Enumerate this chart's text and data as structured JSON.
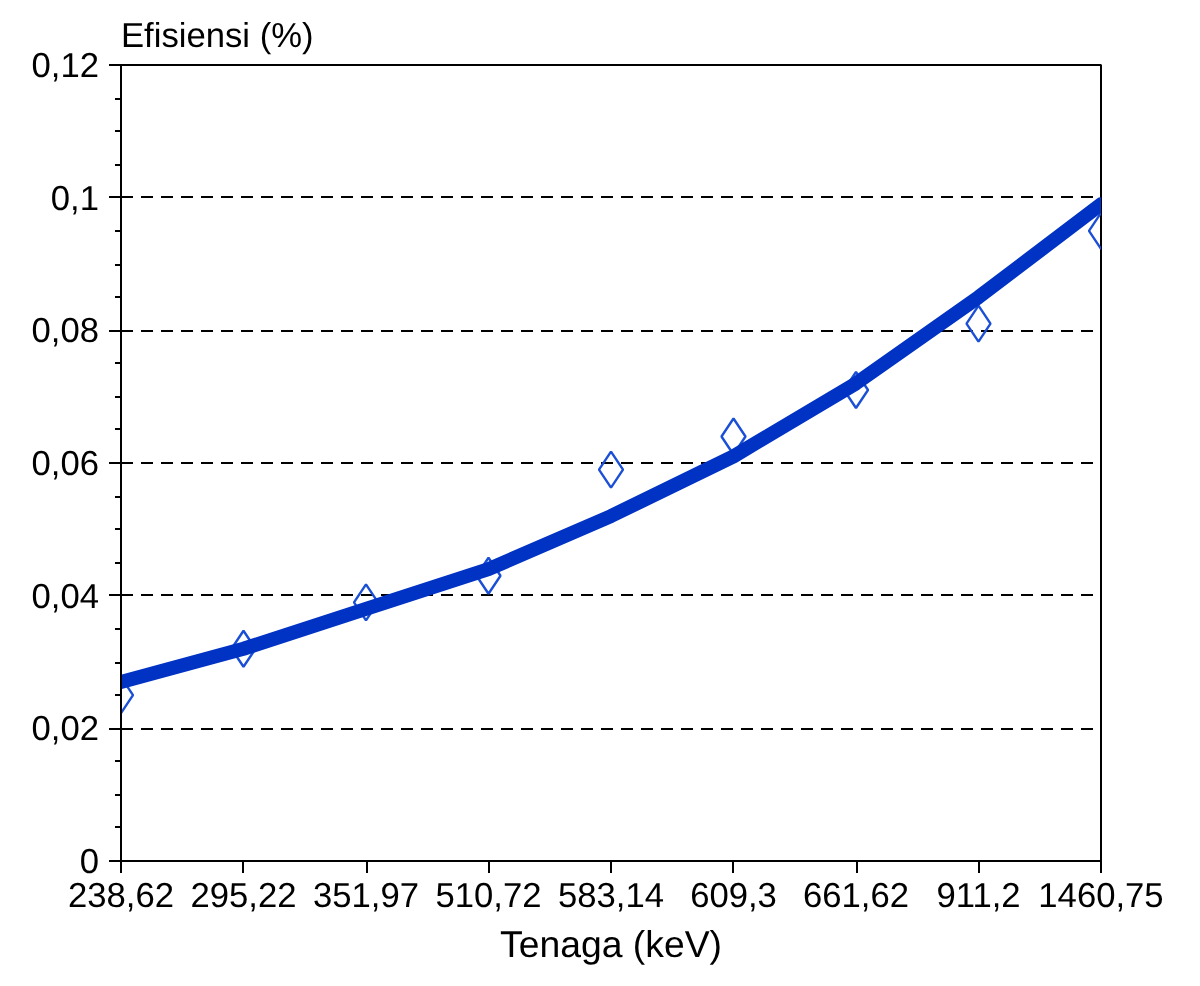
{
  "chart_data": {
    "type": "scatter",
    "xlabel": "Tenaga (keV)",
    "ylabel": "Efisiensi (%)",
    "categories": [
      "238,62",
      "295,22",
      "351,97",
      "510,72",
      "583,14",
      "609,3",
      "661,62",
      "911,2",
      "1460,75"
    ],
    "series": [
      {
        "color": "#1a4fd6",
        "marker": "diamond",
        "values": [
          0.025,
          0.032,
          0.039,
          0.043,
          0.059,
          0.064,
          0.071,
          0.081,
          0.095
        ]
      },
      {
        "type": "line",
        "color": "#0033c4",
        "line_style": "solid",
        "values": [
          0.027,
          0.032,
          0.038,
          0.044,
          0.052,
          0.061,
          0.072,
          0.085,
          0.099
        ]
      }
    ],
    "ylim": [
      0,
      0.12
    ],
    "yticks": [
      0,
      {
        "value": 0.02,
        "label": "0,02"
      },
      {
        "value": 0.04,
        "label": "0,04"
      },
      {
        "value": 0.06,
        "label": "0,06"
      },
      {
        "value": 0.08,
        "label": "0,08"
      },
      {
        "value": 0.1,
        "label": "0,1"
      },
      {
        "value": 0.12,
        "label": "0,12"
      }
    ],
    "grid": "y"
  }
}
